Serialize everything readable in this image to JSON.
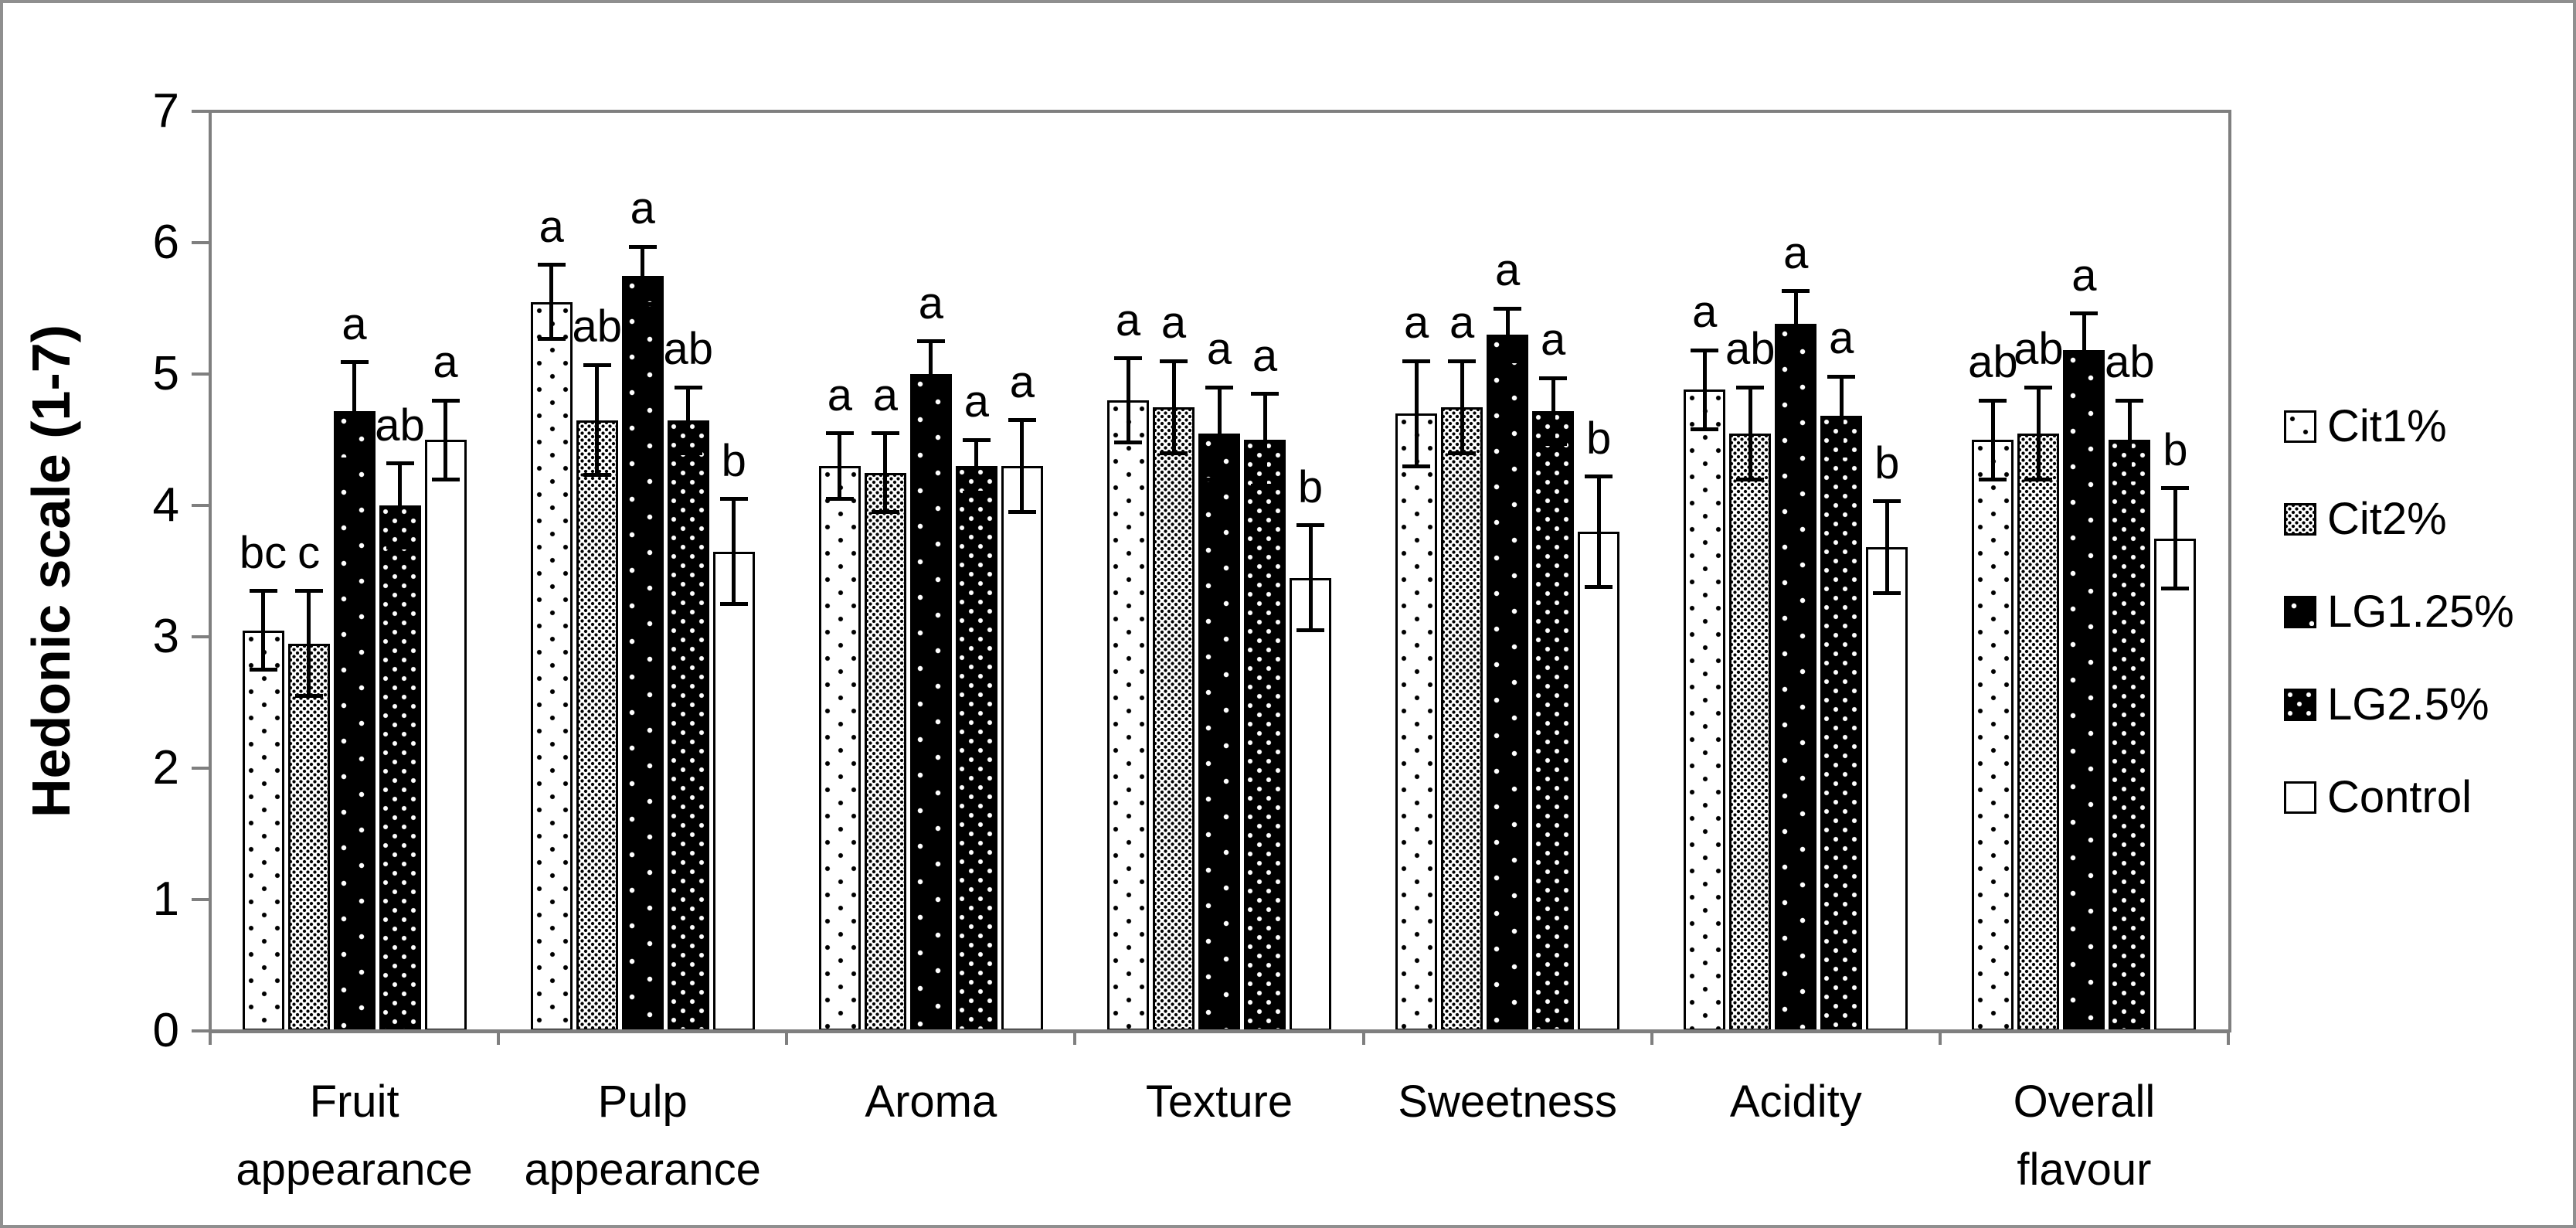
{
  "chart_data": {
    "type": "bar",
    "title": "",
    "ylabel": "Hedonic scale (1-7)",
    "ylim": [
      0,
      7
    ],
    "yticks": [
      "0",
      "1",
      "2",
      "3",
      "4",
      "5",
      "6",
      "7"
    ],
    "grid": false,
    "legend_position": "right",
    "categories": [
      "Fruit appearance",
      "Pulp appearance",
      "Aroma",
      "Texture",
      "Sweetness",
      "Acidity",
      "Overall flavour"
    ],
    "category_label_lines": [
      [
        "Fruit",
        "appearance"
      ],
      [
        "Pulp",
        "appearance"
      ],
      [
        "Aroma"
      ],
      [
        "Texture"
      ],
      [
        "Sweetness"
      ],
      [
        "Acidity"
      ],
      [
        "Overall",
        "flavour"
      ]
    ],
    "series": [
      {
        "name": "Cit1%",
        "pattern": "white-with-sparse-black-dots",
        "values": [
          3.05,
          5.55,
          4.3,
          4.8,
          4.7,
          4.88,
          4.5
        ],
        "errors": [
          0.3,
          0.28,
          0.25,
          0.32,
          0.4,
          0.3,
          0.3
        ],
        "letters": [
          "bc",
          "a",
          "a",
          "a",
          "a",
          "a",
          "ab"
        ]
      },
      {
        "name": "Cit2%",
        "pattern": "white-with-dense-black-dots",
        "values": [
          2.95,
          4.65,
          4.25,
          4.75,
          4.75,
          4.55,
          4.55
        ],
        "errors": [
          0.4,
          0.42,
          0.3,
          0.35,
          0.35,
          0.35,
          0.35
        ],
        "letters": [
          "c",
          "ab",
          "a",
          "a",
          "a",
          "ab",
          "ab"
        ]
      },
      {
        "name": "LG1.25%",
        "pattern": "black-with-sparse-white-dots",
        "values": [
          4.72,
          5.75,
          5.0,
          4.55,
          5.3,
          5.38,
          5.18
        ],
        "errors": [
          0.37,
          0.22,
          0.25,
          0.35,
          0.2,
          0.25,
          0.28
        ],
        "letters": [
          "a",
          "a",
          "a",
          "a",
          "a",
          "a",
          "a"
        ]
      },
      {
        "name": "LG2.5%",
        "pattern": "black-with-dense-white-dots",
        "values": [
          4.0,
          4.65,
          4.3,
          4.5,
          4.72,
          4.68,
          4.5
        ],
        "errors": [
          0.32,
          0.25,
          0.2,
          0.35,
          0.25,
          0.3,
          0.3
        ],
        "letters": [
          "ab",
          "ab",
          "a",
          "a",
          "a",
          "a",
          "ab"
        ]
      },
      {
        "name": "Control",
        "pattern": "plain-white",
        "values": [
          4.5,
          3.65,
          4.3,
          3.45,
          3.8,
          3.68,
          3.75
        ],
        "errors": [
          0.3,
          0.4,
          0.35,
          0.4,
          0.42,
          0.35,
          0.38
        ],
        "letters": [
          "a",
          "b",
          "a",
          "b",
          "b",
          "b",
          "b"
        ]
      }
    ]
  },
  "colors": {
    "bar_outline": "#000000",
    "axis_line": "#7f7f7f",
    "figure_frame": "#8f8f8f",
    "text": "#000000",
    "background": "#ffffff"
  }
}
